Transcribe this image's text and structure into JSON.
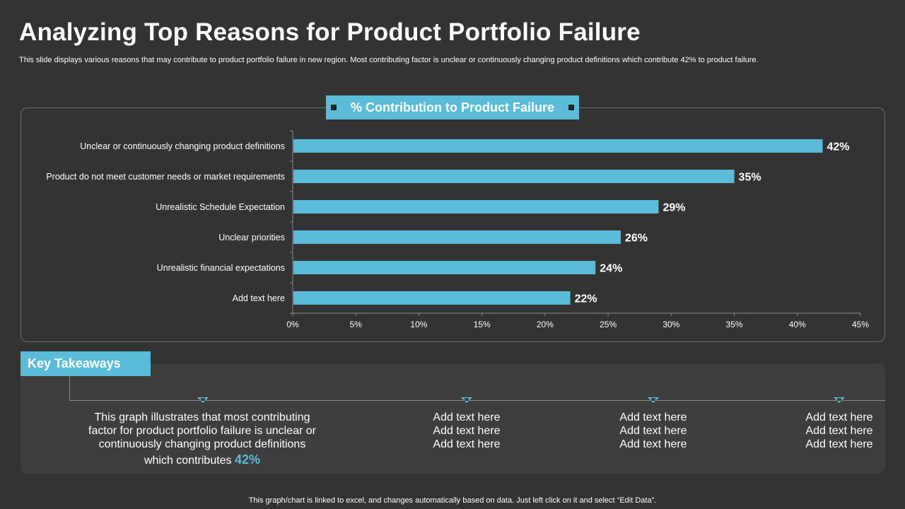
{
  "header": {
    "title": "Analyzing Top Reasons for Product Portfolio Failure",
    "subtitle": "This slide displays various reasons that may contribute to product portfolio failure in new region. Most contributing factor is unclear or continuously changing product definitions which contribute 42% to product failure."
  },
  "chart_data": {
    "type": "bar",
    "orientation": "horizontal",
    "title": "% Contribution to Product Failure",
    "categories": [
      "Unclear or continuously changing product definitions",
      "Product do not meet customer needs or market requirements",
      "Unrealistic Schedule Expectation",
      "Unclear priorities",
      "Unrealistic financial expectations",
      "Add text here"
    ],
    "values": [
      42,
      35,
      29,
      26,
      24,
      22
    ],
    "data_labels": [
      "42%",
      "35%",
      "29%",
      "26%",
      "24%",
      "22%"
    ],
    "xlim": [
      0,
      45
    ],
    "xticks": [
      0,
      5,
      10,
      15,
      20,
      25,
      30,
      35,
      40,
      45
    ],
    "xtick_labels": [
      "0%",
      "5%",
      "10%",
      "15%",
      "20%",
      "25%",
      "30%",
      "35%",
      "40%",
      "45%"
    ],
    "xlabel": "",
    "ylabel": "",
    "grid": false,
    "bar_color": "#5bbcd9"
  },
  "takeaways": {
    "heading": "Key Takeaways",
    "main_line1": "This graph illustrates that most contributing",
    "main_line2": "factor for product portfolio failure is unclear or",
    "main_line3": "continuously changing product definitions",
    "main_line4": "which contributes",
    "main_highlight": "42%",
    "columns": [
      [
        "Add text here",
        "Add text here",
        "Add text here"
      ],
      [
        "Add text here",
        "Add text here",
        "Add text here"
      ],
      [
        "Add text here",
        "Add text here",
        "Add text here"
      ]
    ]
  },
  "footer": "This graph/chart is linked to excel, and changes automatically based on data. Just left click on it and select “Edit Data”.",
  "colors": {
    "background": "#333333",
    "accent": "#5bbcd9",
    "panel": "#3e3e3e"
  }
}
